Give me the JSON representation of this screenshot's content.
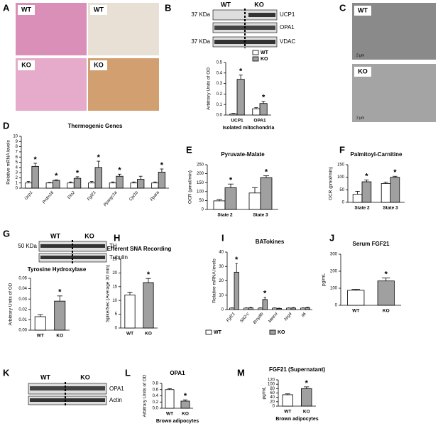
{
  "panel_letters": [
    "A",
    "B",
    "C",
    "D",
    "E",
    "F",
    "G",
    "H",
    "I",
    "J",
    "K",
    "L",
    "M"
  ],
  "histology": {
    "labels": [
      "WT",
      "WT",
      "KO",
      "KO"
    ]
  },
  "blot_b": {
    "groups": [
      "WT",
      "KO"
    ],
    "markers": [
      "37 KDa",
      "37 KDa"
    ],
    "bands": [
      "UCP1",
      "OPA1",
      "VDAC"
    ]
  },
  "em": {
    "labels": [
      "WT",
      "KO"
    ],
    "scale": [
      "2 µm",
      "2 µm"
    ]
  },
  "blot_g": {
    "groups": [
      "WT",
      "KO"
    ],
    "marker": "50 KDa",
    "bands": [
      "TH",
      "Tubulin"
    ],
    "caption": "Tyrosine Hydroxylase"
  },
  "blot_k": {
    "groups": [
      "WT",
      "KO"
    ],
    "bands": [
      "OPA1",
      "Actin"
    ]
  },
  "chart_data": [
    {
      "type": "grouped_bar",
      "ylabel": "Arbitrary Units of OD",
      "xlabel": "Isolated mitochondria",
      "categories": [
        "UCP1",
        "OPA1"
      ],
      "series": [
        {
          "name": "WT",
          "color": "#ffffff",
          "values": [
            0.01,
            0.06
          ],
          "errors": [
            0.005,
            0.01
          ],
          "significance": [
            null,
            null
          ]
        },
        {
          "name": "KO",
          "color": "#a0a0a0",
          "values": [
            0.34,
            0.11
          ],
          "errors": [
            0.04,
            0.02
          ],
          "significance": [
            "*",
            "*"
          ]
        }
      ],
      "ylim": [
        0,
        0.5
      ],
      "yticks": [
        {
          "value": 0,
          "label": "0.0"
        },
        0.1,
        0.2,
        0.3,
        0.4,
        0.5
      ],
      "legend": "top-right"
    },
    {
      "type": "grouped_bar",
      "title": "Thermogenic Genes",
      "ylabel": "Relative mRNA levels",
      "categories": [
        "Ucp1",
        "Prdm16",
        "Dio2",
        "Fgf21",
        "Ppargc1a",
        "Cpt1b",
        "Ppara"
      ],
      "series": [
        {
          "name": "WT",
          "color": "#ffffff",
          "values": [
            1,
            1,
            1,
            1,
            1,
            1,
            1
          ],
          "errors": [
            0.3,
            0.1,
            0.2,
            0.3,
            0.2,
            0.2,
            0.2
          ],
          "significance": [
            null,
            null,
            null,
            null,
            null,
            null,
            null
          ]
        },
        {
          "name": "KO",
          "color": "#a0a0a0",
          "values": [
            4.2,
            1.5,
            1.9,
            4.0,
            2.3,
            1.7,
            3.1
          ],
          "errors": [
            0.6,
            0.1,
            0.3,
            1.2,
            0.4,
            0.6,
            0.6
          ],
          "significance": [
            "*",
            "*",
            "*",
            "*",
            "*",
            null,
            "*"
          ]
        }
      ],
      "ylim": [
        0,
        10
      ],
      "yticks": [
        0,
        1,
        2,
        3,
        4,
        5,
        6,
        7,
        8,
        9,
        10
      ]
    },
    {
      "type": "grouped_bar",
      "title": "Pyruvate-Malate",
      "ylabel": "OCR (pmol/min)",
      "categories": [
        "State 2",
        "State 3"
      ],
      "series": [
        {
          "name": "WT",
          "color": "#ffffff",
          "values": [
            48,
            92
          ],
          "errors": [
            8,
            30
          ],
          "significance": [
            null,
            null
          ]
        },
        {
          "name": "KO",
          "color": "#a0a0a0",
          "values": [
            122,
            178
          ],
          "errors": [
            20,
            10
          ],
          "significance": [
            "*",
            "*"
          ]
        }
      ],
      "ylim": [
        0,
        250
      ],
      "yticks": [
        0,
        50,
        100,
        150,
        200,
        250
      ]
    },
    {
      "type": "grouped_bar",
      "title": "Palmitoyl-Carnitine",
      "ylabel": "OCR (pmol/min)",
      "categories": [
        "State 2",
        "State 3"
      ],
      "series": [
        {
          "name": "WT",
          "color": "#ffffff",
          "values": [
            32,
            75
          ],
          "errors": [
            12,
            6
          ],
          "significance": [
            null,
            null
          ]
        },
        {
          "name": "KO",
          "color": "#a0a0a0",
          "values": [
            82,
            100
          ],
          "errors": [
            7,
            4
          ],
          "significance": [
            "*",
            "*"
          ]
        }
      ],
      "ylim": [
        0,
        150
      ],
      "yticks": [
        0,
        50,
        100,
        150
      ]
    },
    {
      "type": "bar",
      "ylabel": "Arbitrary Units of OD",
      "categories": [
        "WT",
        "KO"
      ],
      "values": [
        0.013,
        0.028
      ],
      "colors": [
        "#ffffff",
        "#a0a0a0"
      ],
      "errors": [
        0.002,
        0.005
      ],
      "significance": [
        null,
        "*"
      ],
      "ylim": [
        0,
        0.05
      ],
      "yticks": [
        {
          "value": 0,
          "label": "0.00"
        },
        0.01,
        0.02,
        0.03,
        0.04,
        0.05
      ]
    },
    {
      "type": "bar",
      "title": "Efferent SNA Recording",
      "ylabel": "Spike/Sec (Average 30 min)",
      "categories": [
        "WT",
        "KO"
      ],
      "values": [
        12,
        16.5
      ],
      "colors": [
        "#ffffff",
        "#a0a0a0"
      ],
      "errors": [
        1,
        1.5
      ],
      "significance": [
        null,
        "*"
      ],
      "ylim": [
        0,
        25
      ],
      "yticks": [
        0,
        5,
        10,
        15,
        20,
        25
      ]
    },
    {
      "type": "grouped_bar",
      "title": "BATokines",
      "ylabel": "Relative mRNA levels",
      "categories": [
        "Fgf21",
        "Slit2-c",
        "Bmp8b",
        "Metrnl",
        "Nrg4",
        "Il6"
      ],
      "series": [
        {
          "name": "WT",
          "color": "#ffffff",
          "values": [
            1,
            1,
            1,
            1,
            1,
            1
          ],
          "errors": [
            0.2,
            0.2,
            0.2,
            0.2,
            0.2,
            0.2
          ],
          "significance": [
            null,
            null,
            null,
            null,
            null,
            null
          ]
        },
        {
          "name": "KO",
          "color": "#a0a0a0",
          "values": [
            26,
            1.2,
            7,
            0.8,
            1.1,
            1.3
          ],
          "errors": [
            6,
            0.3,
            1.5,
            0.2,
            0.3,
            0.3
          ],
          "significance": [
            "*",
            null,
            "*",
            null,
            null,
            null
          ]
        }
      ],
      "ylim": [
        0,
        40
      ],
      "yticks": [
        0,
        10,
        20,
        30,
        40
      ],
      "legend": "bottom"
    },
    {
      "type": "bar",
      "title": "Serum FGF21",
      "ylabel": "pg/mL",
      "categories": [
        "WT",
        "KO"
      ],
      "values": [
        88,
        143
      ],
      "colors": [
        "#ffffff",
        "#a0a0a0"
      ],
      "errors": [
        6,
        18
      ],
      "significance": [
        null,
        "*"
      ],
      "ylim": [
        0,
        300
      ],
      "yticks": [
        0,
        100,
        200,
        300
      ]
    },
    {
      "type": "bar",
      "title": "OPA1",
      "ylabel": "Arbitrary Units of OD",
      "xlabel": "Brown adipocytes",
      "categories": [
        "WT",
        "KO"
      ],
      "values": [
        0.6,
        0.23
      ],
      "colors": [
        "#ffffff",
        "#a0a0a0"
      ],
      "errors": [
        0.03,
        0.04
      ],
      "significance": [
        null,
        "*"
      ],
      "ylim": [
        0,
        0.8
      ],
      "yticks": [
        {
          "value": 0,
          "label": "0.0"
        },
        0.2,
        0.4,
        0.6,
        0.8
      ]
    },
    {
      "type": "bar",
      "title": "FGF21 (Supernatant)",
      "ylabel": "pg/mL",
      "xlabel": "Brown adipocytes",
      "categories": [
        "WT",
        "KO"
      ],
      "values": [
        52,
        80
      ],
      "colors": [
        "#ffffff",
        "#a0a0a0"
      ],
      "errors": [
        4,
        8
      ],
      "significance": [
        null,
        "*"
      ],
      "ylim": [
        0,
        120
      ],
      "yticks": [
        0,
        20,
        40,
        60,
        80,
        100,
        120
      ]
    }
  ]
}
